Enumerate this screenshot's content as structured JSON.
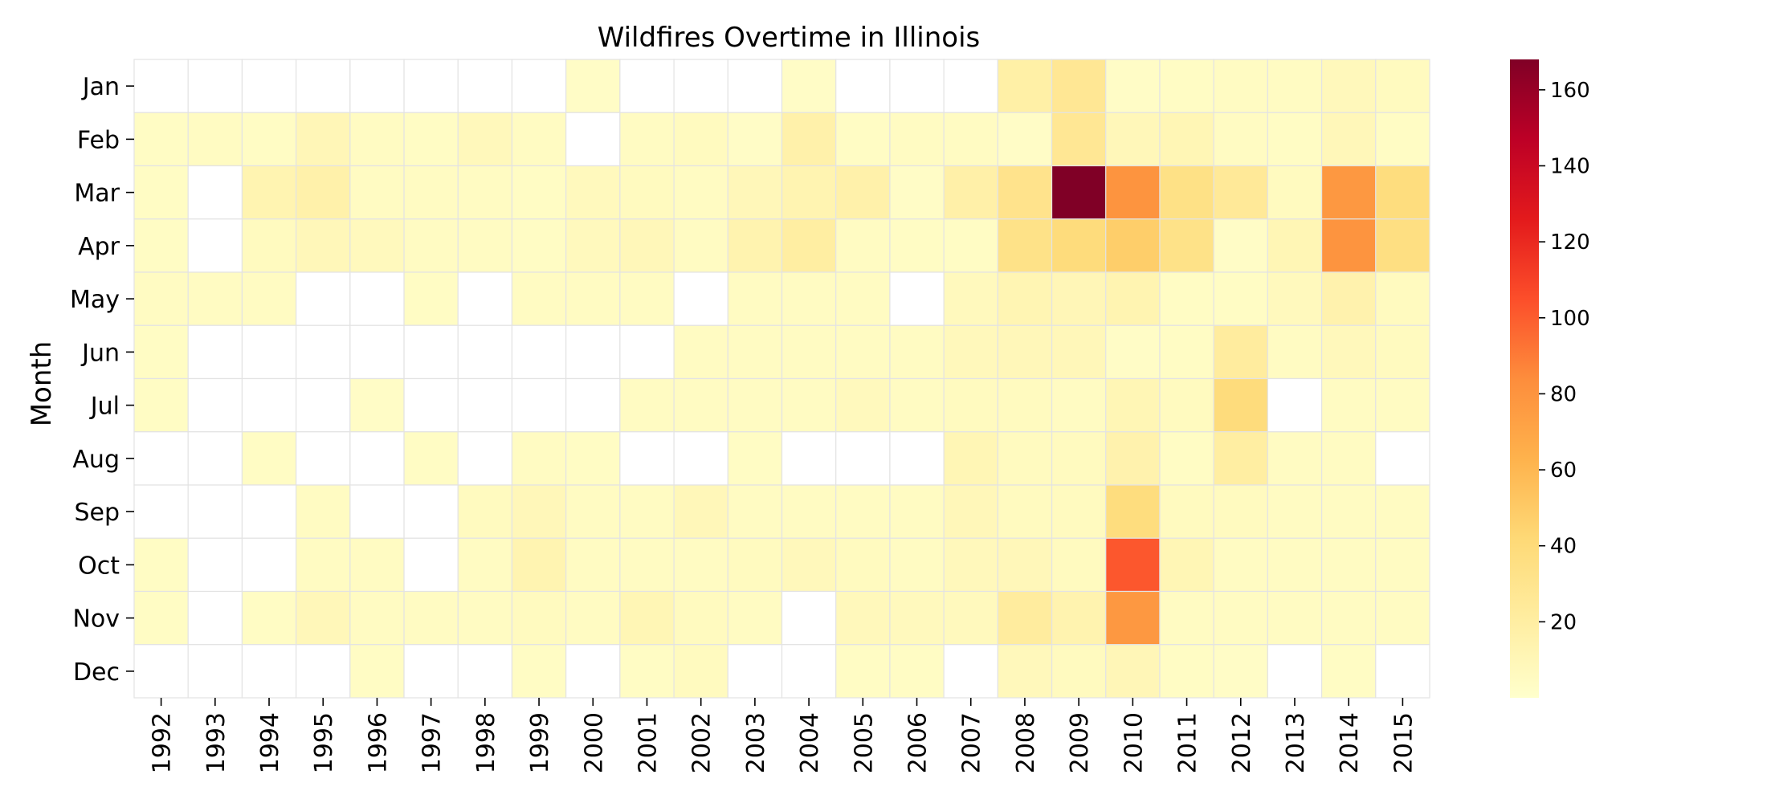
{
  "chart_data": {
    "type": "heatmap",
    "title": "Wildfires Overtime in Illinois",
    "xlabel": "",
    "ylabel": "Month",
    "x": [
      "1992",
      "1993",
      "1994",
      "1995",
      "1996",
      "1997",
      "1998",
      "1999",
      "2000",
      "2001",
      "2002",
      "2003",
      "2004",
      "2005",
      "2006",
      "2007",
      "2008",
      "2009",
      "2010",
      "2011",
      "2012",
      "2013",
      "2014",
      "2015"
    ],
    "y": [
      "Jan",
      "Feb",
      "Mar",
      "Apr",
      "May",
      "Jun",
      "Jul",
      "Aug",
      "Sep",
      "Oct",
      "Nov",
      "Dec"
    ],
    "values": [
      [
        null,
        null,
        null,
        null,
        null,
        null,
        null,
        null,
        3,
        null,
        null,
        null,
        3,
        null,
        null,
        null,
        18,
        27,
        3,
        4,
        5,
        5,
        8,
        6
      ],
      [
        4,
        5,
        4,
        10,
        5,
        4,
        8,
        5,
        null,
        5,
        6,
        3,
        16,
        4,
        5,
        5,
        3,
        27,
        9,
        11,
        5,
        4,
        9,
        4
      ],
      [
        4,
        null,
        13,
        16,
        5,
        5,
        5,
        4,
        7,
        6,
        5,
        9,
        13,
        16,
        3,
        17,
        31,
        168,
        80,
        34,
        25,
        6,
        78,
        38
      ],
      [
        4,
        null,
        6,
        9,
        7,
        5,
        5,
        4,
        7,
        9,
        5,
        14,
        20,
        5,
        4,
        4,
        33,
        39,
        48,
        33,
        3,
        11,
        80,
        36
      ],
      [
        5,
        5,
        5,
        null,
        null,
        4,
        null,
        5,
        5,
        5,
        null,
        5,
        5,
        5,
        null,
        7,
        12,
        10,
        13,
        4,
        4,
        7,
        15,
        6
      ],
      [
        4,
        null,
        null,
        null,
        null,
        null,
        null,
        null,
        null,
        null,
        5,
        5,
        5,
        5,
        5,
        8,
        9,
        9,
        3,
        4,
        22,
        5,
        8,
        6
      ],
      [
        4,
        null,
        null,
        null,
        3,
        null,
        null,
        null,
        null,
        5,
        5,
        5,
        5,
        7,
        5,
        6,
        6,
        5,
        11,
        6,
        39,
        null,
        5,
        5
      ],
      [
        null,
        null,
        4,
        null,
        null,
        4,
        null,
        5,
        4,
        null,
        null,
        4,
        null,
        null,
        null,
        11,
        6,
        6,
        15,
        4,
        20,
        5,
        5,
        null
      ],
      [
        null,
        null,
        null,
        5,
        null,
        null,
        6,
        9,
        5,
        5,
        9,
        5,
        5,
        5,
        5,
        9,
        6,
        6,
        38,
        6,
        6,
        5,
        5,
        5
      ],
      [
        4,
        null,
        null,
        5,
        5,
        null,
        5,
        13,
        5,
        5,
        5,
        6,
        8,
        6,
        5,
        8,
        9,
        6,
        102,
        11,
        5,
        5,
        5,
        5
      ],
      [
        4,
        null,
        4,
        9,
        5,
        5,
        5,
        6,
        5,
        11,
        6,
        5,
        null,
        8,
        7,
        7,
        22,
        14,
        78,
        5,
        5,
        5,
        5,
        5
      ],
      [
        null,
        null,
        null,
        null,
        4,
        null,
        null,
        4,
        null,
        4,
        6,
        null,
        null,
        4,
        4,
        null,
        8,
        6,
        10,
        4,
        3,
        null,
        4,
        null
      ]
    ],
    "colorbar": {
      "min": 0,
      "max": 168,
      "ticks": [
        20,
        40,
        60,
        80,
        100,
        120,
        140,
        160
      ],
      "colormap": "YlOrRd",
      "stops": [
        "#ffffcc",
        "#ffeda0",
        "#fed976",
        "#feb24c",
        "#fd8d3c",
        "#fc4e2a",
        "#e31a1c",
        "#bd0026",
        "#800026"
      ]
    },
    "grid": false,
    "legend": "colorbar-right"
  }
}
